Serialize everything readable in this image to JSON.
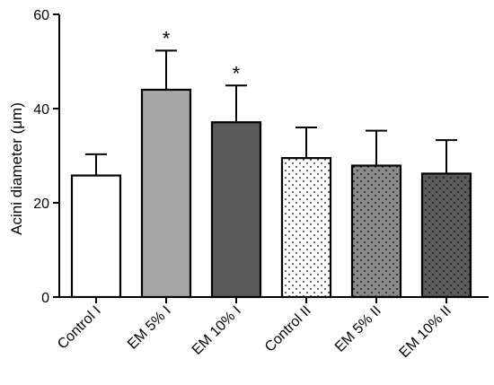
{
  "chart_data": {
    "type": "bar",
    "title": "",
    "xlabel": "",
    "ylabel": "Acini diameter (μm)",
    "ylim": [
      0,
      60
    ],
    "yticks": [
      0,
      20,
      40,
      60
    ],
    "grid": false,
    "categories": [
      "Control I",
      "EM 5% I",
      "EM 10% I",
      "Control II",
      "EM 5% II",
      "EM 10% II"
    ],
    "values": [
      25.8,
      44.0,
      37.1,
      29.5,
      27.9,
      26.2
    ],
    "errors": [
      4.5,
      8.3,
      7.8,
      6.5,
      7.4,
      7.1
    ],
    "annotations": [
      "",
      "*",
      "*",
      "",
      "",
      ""
    ],
    "bar_fills": [
      {
        "color": "#ffffff",
        "pattern": "none"
      },
      {
        "color": "#a6a6a6",
        "pattern": "none"
      },
      {
        "color": "#5a5a5a",
        "pattern": "none"
      },
      {
        "color": "#ffffff",
        "pattern": "dots"
      },
      {
        "color": "#8a8a8a",
        "pattern": "dots"
      },
      {
        "color": "#5a5a5a",
        "pattern": "dots"
      }
    ]
  }
}
